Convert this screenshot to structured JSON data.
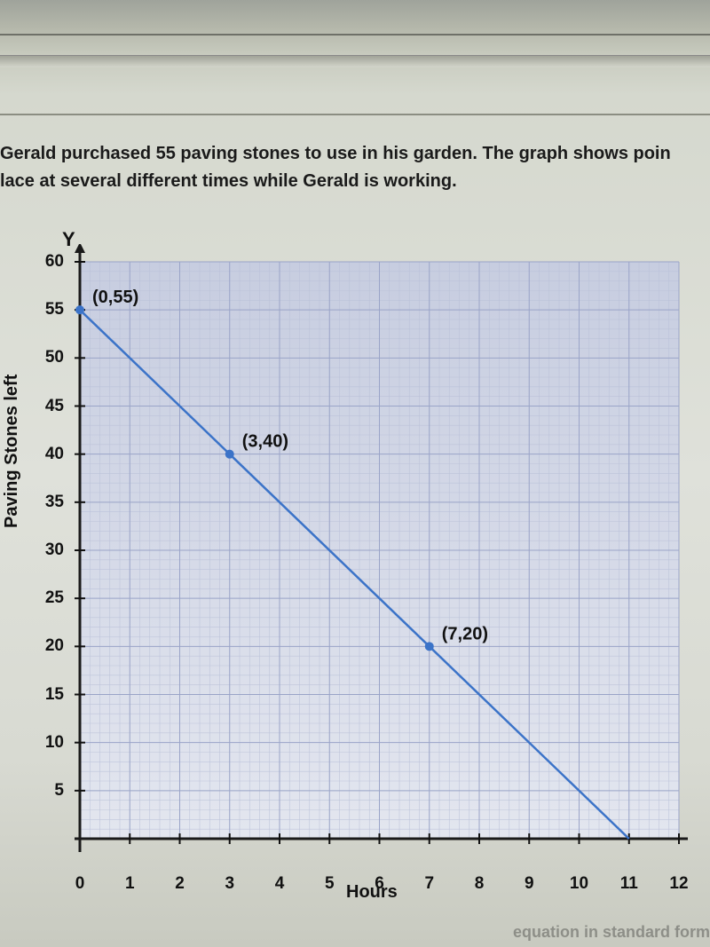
{
  "question": {
    "line1": "Gerald purchased 55 paving stones to use in his garden. The graph shows poin",
    "line2": "lace at several different times while Gerald is working."
  },
  "chart": {
    "type": "line",
    "y_axis_top_label": "Y",
    "ylabel": "Paving Stones left",
    "xlabel": "Hours",
    "xlim": [
      0,
      12
    ],
    "ylim": [
      0,
      60
    ],
    "xtick_step": 1,
    "ytick_step": 5,
    "yticks": [
      5,
      10,
      15,
      20,
      25,
      30,
      35,
      40,
      45,
      50,
      55,
      60
    ],
    "xticks": [
      0,
      1,
      2,
      3,
      4,
      5,
      6,
      7,
      8,
      9,
      10,
      11,
      12
    ],
    "minor_x_div": 5,
    "minor_y_div": 5,
    "line_color": "#3b73c8",
    "line_width": 2.5,
    "marker_color": "#3b73c8",
    "marker_radius": 5,
    "grid_minor_color": "#b9c0d8",
    "grid_major_color": "#9aa4c8",
    "axis_color": "#1a1a1a",
    "axis_width": 3,
    "plot_bg_top": "#c7cde0",
    "plot_bg_bottom": "#e3e6ef",
    "tick_color": "#111",
    "point_label_fontsize": 20,
    "point_label_color": "#111",
    "data_points": [
      {
        "x": 0,
        "y": 55,
        "label": "(0,55)"
      },
      {
        "x": 3,
        "y": 40,
        "label": "(3,40)"
      },
      {
        "x": 7,
        "y": 20,
        "label": "(7,20)"
      }
    ],
    "line_end": {
      "x": 11,
      "y": 0
    }
  },
  "bottom_hint": "equation  in standard form"
}
